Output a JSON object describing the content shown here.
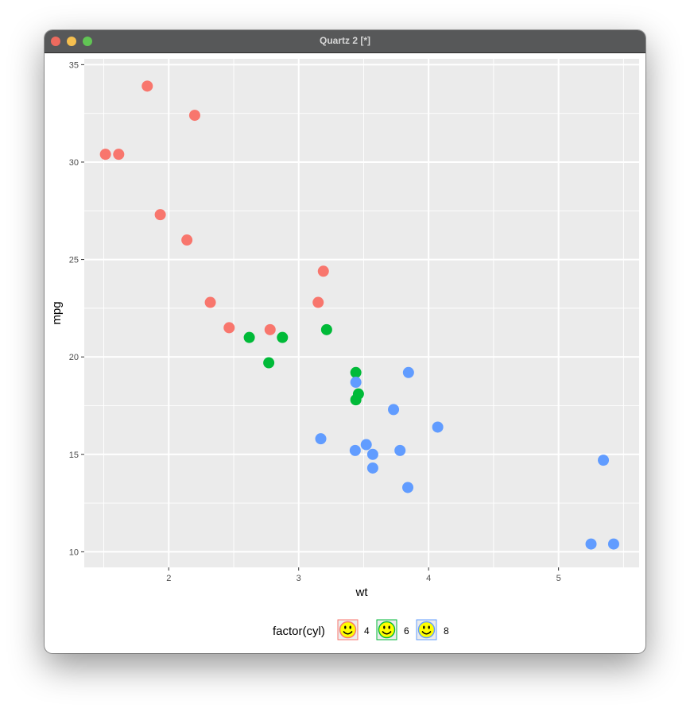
{
  "window": {
    "title": "Quartz 2 [*]",
    "controls": [
      "close-icon",
      "minimize-icon",
      "maximize-icon"
    ]
  },
  "chart_data": {
    "type": "scatter",
    "xlabel": "wt",
    "ylabel": "mpg",
    "xlim": [
      1.35,
      5.62
    ],
    "ylim": [
      9.2,
      35.3
    ],
    "x_ticks": [
      2,
      3,
      4,
      5
    ],
    "y_ticks": [
      10,
      15,
      20,
      25,
      30,
      35
    ],
    "grid": true,
    "legend": {
      "title": "factor(cyl)",
      "position": "bottom",
      "icon": "smiley-face-icon",
      "entries": [
        "4",
        "6",
        "8"
      ]
    },
    "colors": {
      "4": "#F8766D",
      "6": "#00BA38",
      "8": "#619CFF",
      "panel": "#EBEBEB",
      "grid": "#FFFFFF"
    },
    "series": [
      {
        "name": "4",
        "points": [
          [
            2.32,
            22.8
          ],
          [
            3.19,
            24.4
          ],
          [
            3.15,
            22.8
          ],
          [
            2.2,
            32.4
          ],
          [
            1.615,
            30.4
          ],
          [
            1.835,
            33.9
          ],
          [
            2.465,
            21.5
          ],
          [
            1.935,
            27.3
          ],
          [
            2.14,
            26.0
          ],
          [
            1.513,
            30.4
          ],
          [
            2.78,
            21.4
          ]
        ]
      },
      {
        "name": "6",
        "points": [
          [
            2.62,
            21.0
          ],
          [
            2.875,
            21.0
          ],
          [
            3.215,
            21.4
          ],
          [
            3.46,
            18.1
          ],
          [
            3.44,
            19.2
          ],
          [
            3.44,
            17.8
          ],
          [
            2.77,
            19.7
          ]
        ]
      },
      {
        "name": "8",
        "points": [
          [
            3.44,
            18.7
          ],
          [
            3.57,
            14.3
          ],
          [
            4.07,
            16.4
          ],
          [
            3.73,
            17.3
          ],
          [
            3.78,
            15.2
          ],
          [
            5.25,
            10.4
          ],
          [
            5.424,
            10.4
          ],
          [
            5.345,
            14.7
          ],
          [
            3.52,
            15.5
          ],
          [
            3.435,
            15.2
          ],
          [
            3.84,
            13.3
          ],
          [
            3.845,
            19.2
          ],
          [
            3.17,
            15.8
          ],
          [
            3.57,
            15.0
          ]
        ]
      }
    ]
  }
}
